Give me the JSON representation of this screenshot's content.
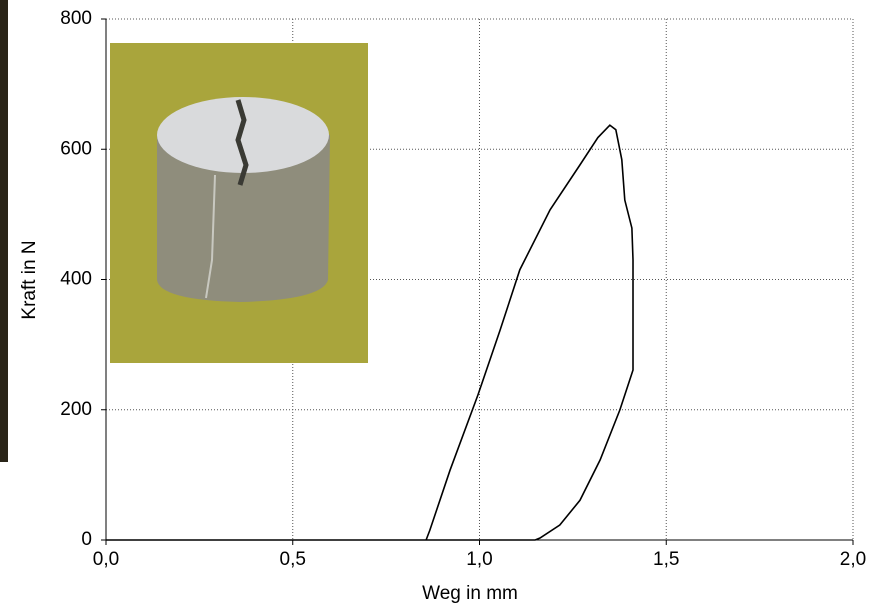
{
  "chart_data": {
    "type": "line",
    "x_label": "Weg in mm",
    "y_label": "Kraft in N",
    "xlim": [
      0,
      2
    ],
    "ylim": [
      0,
      800
    ],
    "xticks": [
      {
        "value": 0,
        "label": "0,0"
      },
      {
        "value": 0.5,
        "label": "0,5"
      },
      {
        "value": 1,
        "label": "1,0"
      },
      {
        "value": 1.5,
        "label": "1,5"
      },
      {
        "value": 2,
        "label": "2,0"
      }
    ],
    "yticks": [
      0,
      200,
      400,
      600,
      800
    ],
    "grid": true,
    "series": [
      {
        "color": "#000000",
        "x": [
          0,
          0.85,
          0.857,
          0.867,
          0.921,
          0.996,
          1.055,
          1.108,
          1.189,
          1.269,
          1.317,
          1.349,
          1.365,
          1.381,
          1.389,
          1.408,
          1.411,
          1.411,
          1.376,
          1.323,
          1.269,
          1.215,
          1.162,
          1.149,
          0.85
        ],
        "values": [
          0,
          0,
          0,
          15,
          107,
          223,
          322,
          415,
          507,
          576,
          618,
          637,
          630,
          584,
          522,
          479,
          430,
          261,
          200,
          123,
          61,
          23,
          3,
          0,
          0
        ]
      }
    ]
  }
}
